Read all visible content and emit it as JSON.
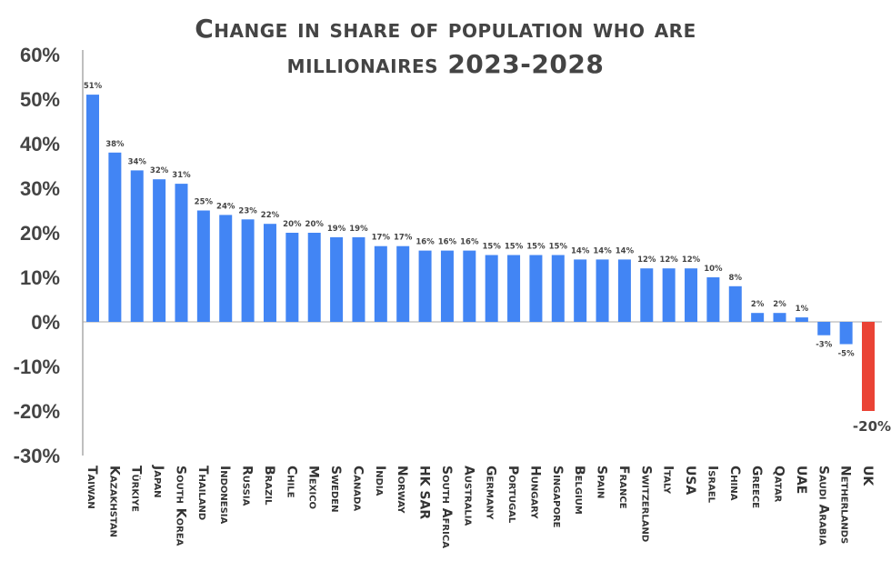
{
  "chart_data": {
    "type": "bar",
    "title": "Change in share of population who are millionaires 2023-2028",
    "title_lines": [
      "Change in share of population who are",
      "millionaires 2023-2028"
    ],
    "xlabel": "",
    "ylabel": "",
    "ylim": [
      -30,
      60
    ],
    "yticks": [
      "60%",
      "50%",
      "40%",
      "30%",
      "20%",
      "10%",
      "0%",
      "-10%",
      "-20%",
      "-30%"
    ],
    "grid": false,
    "categories": [
      "Taiwan",
      "Kazakhstan",
      "Türkiye",
      "Japan",
      "South Korea",
      "Thailand",
      "Indonesia",
      "Russia",
      "Brazil",
      "Chile",
      "Mexico",
      "Sweden",
      "Canada",
      "India",
      "Norway",
      "HK SAR",
      "South Africa",
      "Australia",
      "Germany",
      "Portugal",
      "Hungary",
      "Singapore",
      "Belgium",
      "Spain",
      "France",
      "Switzerland",
      "Italy",
      "USA",
      "Israel",
      "China",
      "Greece",
      "Qatar",
      "UAE",
      "Saudi Arabia",
      "Netherlands",
      "UK"
    ],
    "values": [
      51,
      38,
      34,
      32,
      31,
      25,
      24,
      23,
      22,
      20,
      20,
      19,
      19,
      17,
      17,
      16,
      16,
      16,
      15,
      15,
      15,
      15,
      14,
      14,
      14,
      12,
      12,
      12,
      10,
      8,
      2,
      2,
      1,
      -3,
      -5,
      -20
    ],
    "data_labels": [
      "51%",
      "38%",
      "34%",
      "32%",
      "31%",
      "25%",
      "24%",
      "23%",
      "22%",
      "20%",
      "20%",
      "19%",
      "19%",
      "17%",
      "17%",
      "16%",
      "16%",
      "16%",
      "15%",
      "15%",
      "15%",
      "15%",
      "14%",
      "14%",
      "14%",
      "12%",
      "12%",
      "12%",
      "10%",
      "8%",
      "2%",
      "2%",
      "1%",
      "-3%",
      "-5%",
      "-20%"
    ],
    "colors": {
      "default": "#4285f4",
      "highlight": "#ea4335",
      "highlight_category": "UK",
      "axis": "#aaaaaa",
      "text": "#444444"
    }
  }
}
